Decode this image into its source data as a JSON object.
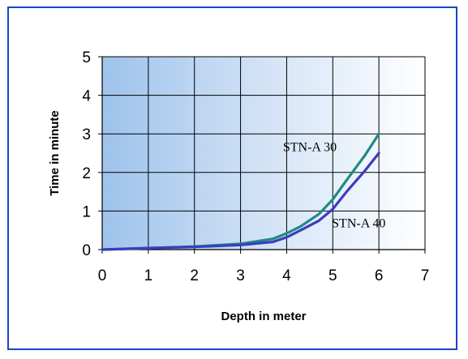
{
  "chart_data": {
    "type": "line",
    "title": "",
    "xlabel": "Depth in meter",
    "ylabel": "Time in minute",
    "xlim": [
      0,
      7
    ],
    "ylim": [
      0,
      5
    ],
    "x_ticks": [
      0,
      1,
      2,
      3,
      4,
      5,
      6,
      7
    ],
    "y_ticks": [
      0,
      1,
      2,
      3,
      4,
      5
    ],
    "grid": true,
    "legend": "none",
    "background": "horizontal gradient blue to white",
    "series": [
      {
        "name": "STN-A 30",
        "color": "#1f8a84",
        "x": [
          0,
          1,
          2,
          3,
          3.7,
          4,
          4.3,
          4.7,
          5,
          5.3,
          5.7,
          6
        ],
        "y": [
          0,
          0.04,
          0.08,
          0.15,
          0.28,
          0.42,
          0.6,
          0.92,
          1.3,
          1.8,
          2.45,
          3.0
        ]
      },
      {
        "name": "STN-A 40",
        "color": "#3c3cbf",
        "x": [
          0,
          1,
          2,
          3,
          3.7,
          4,
          4.3,
          4.7,
          5,
          5.3,
          5.7,
          6
        ],
        "y": [
          0,
          0.04,
          0.07,
          0.12,
          0.2,
          0.32,
          0.5,
          0.75,
          1.05,
          1.5,
          2.05,
          2.5
        ]
      }
    ]
  }
}
